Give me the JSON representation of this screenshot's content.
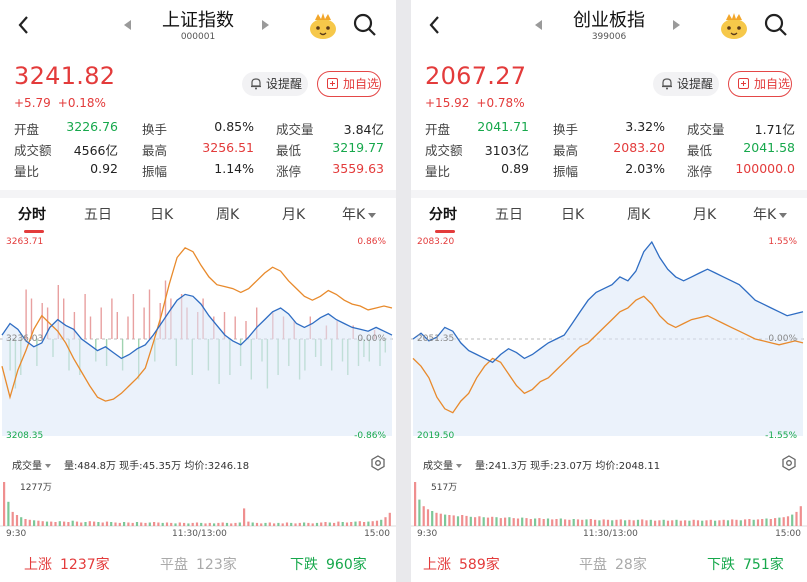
{
  "colors": {
    "up": "#e33b3b",
    "down": "#17a84c",
    "blue_line": "#2f6dc3",
    "orange_line": "#e88a2c",
    "fill": "#dbe8f7"
  },
  "left": {
    "title": "上证指数",
    "code": "000001",
    "price": "3241.82",
    "change": "+5.79",
    "change_pct": "+0.18%",
    "alert_label": "设提醒",
    "add_label": "加自选",
    "stats": [
      [
        [
          "开盘",
          "3226.76",
          "green"
        ],
        [
          "换手",
          "0.85%",
          "dark"
        ],
        [
          "成交量",
          "3.84亿",
          "dark"
        ]
      ],
      [
        [
          "成交额",
          "4566亿",
          "dark"
        ],
        [
          "最高",
          "3256.51",
          "red"
        ],
        [
          "最低",
          "3219.77",
          "green"
        ]
      ],
      [
        [
          "量比",
          "0.92",
          "dark"
        ],
        [
          "振幅",
          "1.14%",
          "dark"
        ],
        [
          "涨停",
          "3559.63",
          "red"
        ]
      ]
    ],
    "tabs": [
      "分时",
      "五日",
      "日K",
      "周K",
      "月K",
      "年K"
    ],
    "axis": {
      "top_left": "3263.71",
      "mid_left": "3236.03",
      "bottom_left": "3208.35",
      "top_right": "0.86%",
      "mid_right": "0.00%",
      "bottom_right": "-0.86%"
    },
    "volume_selector": "成交量",
    "volume_info": "量:484.8万  现手:45.35万  均价:3246.18",
    "volume_max": "1277万",
    "time_labels": [
      "9:30",
      "11:30/13:00",
      "15:00"
    ],
    "footer": {
      "up_label": "上涨",
      "up_count": "1237家",
      "flat_label": "平盘",
      "flat_count": "123家",
      "down_label": "下跌",
      "down_count": "960家"
    },
    "blue_line": [
      0.52,
      0.58,
      0.55,
      0.49,
      0.46,
      0.48,
      0.56,
      0.6,
      0.57,
      0.55,
      0.5,
      0.47,
      0.44,
      0.46,
      0.43,
      0.4,
      0.42,
      0.45,
      0.47,
      0.52,
      0.58,
      0.64,
      0.7,
      0.73,
      0.72,
      0.68,
      0.62,
      0.57,
      0.52,
      0.49,
      0.47,
      0.51,
      0.56,
      0.6,
      0.64,
      0.66,
      0.63,
      0.58,
      0.56,
      0.58,
      0.61,
      0.63,
      0.6,
      0.58,
      0.56,
      0.55,
      0.54,
      0.56,
      0.54,
      0.52
    ],
    "orange_line": [
      0.36,
      0.2,
      0.34,
      0.44,
      0.55,
      0.62,
      0.58,
      0.54,
      0.48,
      0.4,
      0.33,
      0.26,
      0.2,
      0.18,
      0.19,
      0.22,
      0.26,
      0.3,
      0.35,
      0.48,
      0.62,
      0.78,
      0.92,
      0.97,
      0.95,
      0.88,
      0.82,
      0.78,
      0.77,
      0.76,
      0.74,
      0.76,
      0.8,
      0.84,
      0.87,
      0.85,
      0.8,
      0.76,
      0.72,
      0.7,
      0.72,
      0.75,
      0.73,
      0.7,
      0.68,
      0.67,
      0.65,
      0.66,
      0.67,
      0.66
    ],
    "volumes": [
      1.0,
      0.55,
      0.32,
      0.25,
      0.2,
      0.16,
      0.14,
      0.13,
      0.12,
      0.11,
      0.1,
      0.1,
      0.09,
      0.11,
      0.1,
      0.09,
      0.12,
      0.1,
      0.08,
      0.09,
      0.11,
      0.1,
      0.09,
      0.08,
      0.1,
      0.09,
      0.08,
      0.07,
      0.09,
      0.08,
      0.07,
      0.09,
      0.08,
      0.07,
      0.08,
      0.09,
      0.08,
      0.07,
      0.08,
      0.07,
      0.06,
      0.08,
      0.07,
      0.06,
      0.07,
      0.08,
      0.07,
      0.06,
      0.07,
      0.06,
      0.07,
      0.08,
      0.07,
      0.06,
      0.07,
      0.08,
      0.4,
      0.1,
      0.08,
      0.07,
      0.06,
      0.07,
      0.08,
      0.06,
      0.07,
      0.06,
      0.08,
      0.07,
      0.06,
      0.07,
      0.08,
      0.07,
      0.06,
      0.07,
      0.08,
      0.09,
      0.08,
      0.07,
      0.1,
      0.09,
      0.08,
      0.09,
      0.1,
      0.11,
      0.09,
      0.1,
      0.11,
      0.12,
      0.14,
      0.2,
      0.3
    ],
    "bars": [
      0.0,
      -0.35,
      -0.55,
      -0.4,
      0.55,
      0.45,
      -0.3,
      0.4,
      0.35,
      -0.2,
      0.6,
      0.45,
      -0.35,
      0.3,
      -0.4,
      0.5,
      0.25,
      -0.25,
      0.35,
      -0.3,
      0.45,
      0.3,
      -0.35,
      0.25,
      0.5,
      -0.45,
      0.35,
      0.55,
      -0.25,
      0.4,
      0.65,
      0.45,
      -0.3,
      0.5,
      0.35,
      -0.4,
      0.3,
      0.45,
      -0.35,
      0.25,
      -0.5,
      0.3,
      -0.4,
      0.25,
      -0.3,
      0.2,
      -0.45,
      0.35,
      -0.25,
      -0.55,
      0.3,
      -0.4,
      0.25,
      -0.3,
      0.2,
      -0.45,
      -0.35,
      0.25,
      -0.2,
      -0.3,
      0.15,
      -0.35,
      0.2,
      -0.25,
      -0.4,
      0.15,
      -0.3,
      -0.2,
      -0.25,
      0.1,
      -0.3,
      -0.15
    ]
  },
  "right": {
    "title": "创业板指",
    "code": "399006",
    "price": "2067.27",
    "change": "+15.92",
    "change_pct": "+0.78%",
    "alert_label": "设提醒",
    "add_label": "加自选",
    "stats": [
      [
        [
          "开盘",
          "2041.71",
          "green"
        ],
        [
          "换手",
          "3.32%",
          "dark"
        ],
        [
          "成交量",
          "1.71亿",
          "dark"
        ]
      ],
      [
        [
          "成交额",
          "3103亿",
          "dark"
        ],
        [
          "最高",
          "2083.20",
          "red"
        ],
        [
          "最低",
          "2041.58",
          "green"
        ]
      ],
      [
        [
          "量比",
          "0.89",
          "dark"
        ],
        [
          "振幅",
          "2.03%",
          "dark"
        ],
        [
          "涨停",
          "100000.0",
          "red"
        ]
      ]
    ],
    "tabs": [
      "分时",
      "五日",
      "日K",
      "周K",
      "月K",
      "年K"
    ],
    "axis": {
      "top_left": "2083.20",
      "mid_left": "2051.35",
      "bottom_left": "2019.50",
      "top_right": "1.55%",
      "mid_right": "0.00%",
      "bottom_right": "-1.55%"
    },
    "volume_selector": "成交量",
    "volume_info": "量:241.3万  现手:23.07万  均价:2048.11",
    "volume_max": "517万",
    "time_labels": [
      "9:30",
      "11:30/13:00",
      "15:00"
    ],
    "footer": {
      "up_label": "上涨",
      "up_count": "589家",
      "flat_label": "平盘",
      "flat_count": "28家",
      "down_label": "下跌",
      "down_count": "751家"
    },
    "blue_line": [
      0.5,
      0.53,
      0.49,
      0.51,
      0.56,
      0.54,
      0.48,
      0.44,
      0.42,
      0.4,
      0.38,
      0.42,
      0.45,
      0.43,
      0.4,
      0.42,
      0.45,
      0.48,
      0.5,
      0.52,
      0.58,
      0.64,
      0.7,
      0.74,
      0.76,
      0.78,
      0.82,
      0.8,
      0.85,
      0.95,
      1.0,
      0.92,
      0.86,
      0.82,
      0.8,
      0.82,
      0.84,
      0.86,
      0.84,
      0.82,
      0.8,
      0.78,
      0.74,
      0.7,
      0.68,
      0.66,
      0.64,
      0.62,
      0.63,
      0.64
    ],
    "orange_line": [
      0.4,
      0.36,
      0.3,
      0.2,
      0.14,
      0.12,
      0.18,
      0.22,
      0.3,
      0.36,
      0.4,
      0.38,
      0.32,
      0.26,
      0.22,
      0.24,
      0.28,
      0.3,
      0.34,
      0.38,
      0.42,
      0.46,
      0.48,
      0.52,
      0.56,
      0.6,
      0.64,
      0.66,
      0.7,
      0.72,
      0.68,
      0.62,
      0.58,
      0.56,
      0.58,
      0.6,
      0.61,
      0.62,
      0.6,
      0.58,
      0.56,
      0.54,
      0.52,
      0.5,
      0.49,
      0.48,
      0.47,
      0.48,
      0.49,
      0.48
    ],
    "volumes": [
      1.0,
      0.6,
      0.45,
      0.38,
      0.34,
      0.3,
      0.28,
      0.26,
      0.25,
      0.24,
      0.22,
      0.25,
      0.23,
      0.21,
      0.2,
      0.22,
      0.2,
      0.19,
      0.21,
      0.2,
      0.18,
      0.19,
      0.2,
      0.18,
      0.17,
      0.19,
      0.18,
      0.16,
      0.17,
      0.18,
      0.16,
      0.17,
      0.15,
      0.16,
      0.17,
      0.15,
      0.14,
      0.16,
      0.15,
      0.14,
      0.15,
      0.16,
      0.14,
      0.13,
      0.15,
      0.14,
      0.13,
      0.14,
      0.15,
      0.13,
      0.14,
      0.13,
      0.14,
      0.15,
      0.13,
      0.14,
      0.12,
      0.13,
      0.14,
      0.12,
      0.13,
      0.14,
      0.12,
      0.13,
      0.12,
      0.14,
      0.13,
      0.12,
      0.13,
      0.14,
      0.12,
      0.13,
      0.14,
      0.13,
      0.15,
      0.14,
      0.13,
      0.15,
      0.16,
      0.14,
      0.15,
      0.16,
      0.17,
      0.16,
      0.18,
      0.19,
      0.2,
      0.22,
      0.26,
      0.32,
      0.45
    ],
    "bars": []
  }
}
